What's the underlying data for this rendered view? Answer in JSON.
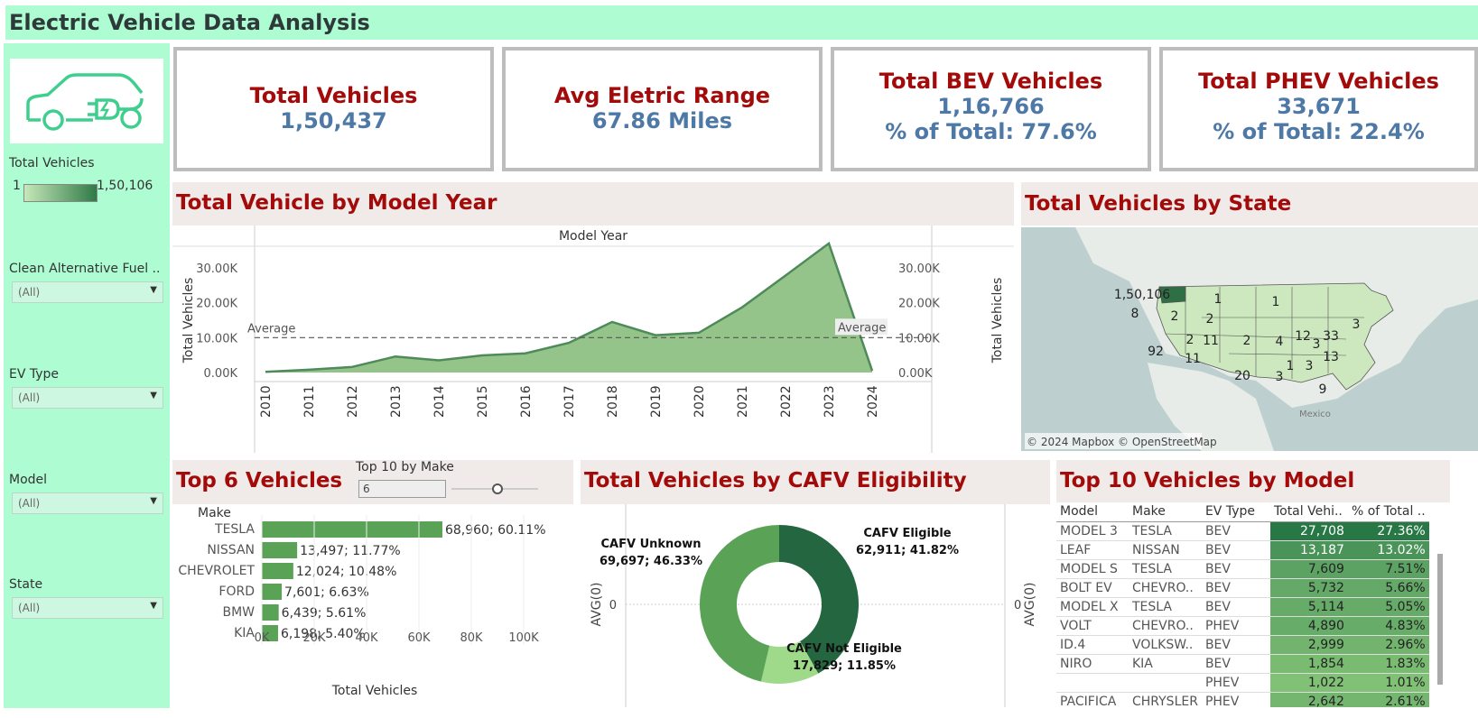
{
  "page_title": "Electric Vehicle Data Analysis",
  "sidebar": {
    "logo_icon": "ev-car-icon",
    "legend_title": "Total Vehicles",
    "legend_min": "1",
    "legend_max": "1,50,106",
    "filters": [
      {
        "label": "Clean Alternative Fuel ..",
        "value": "(All)"
      },
      {
        "label": "EV Type",
        "value": "(All)"
      },
      {
        "label": "Model",
        "value": "(All)"
      },
      {
        "label": "State",
        "value": "(All)"
      }
    ]
  },
  "kpis": [
    {
      "title": "Total Vehicles",
      "value": "1,50,437",
      "sub": ""
    },
    {
      "title": "Avg Eletric Range",
      "value": "67.86 Miles",
      "sub": ""
    },
    {
      "title": "Total BEV Vehicles",
      "value": "1,16,766",
      "sub": "% of Total: 77.6%"
    },
    {
      "title": "Total PHEV Vehicles",
      "value": "33,671",
      "sub": "% of Total: 22.4%"
    }
  ],
  "colors": {
    "title_red": "#a30a0a",
    "kpi_blue": "#4e79a7",
    "area_green": "#95c48a",
    "bar_green": "#5aa356",
    "sidebar": "#adfcd2"
  },
  "chart_data": [
    {
      "type": "area",
      "title": "Total Vehicle by Model Year",
      "xlabel": "Model Year",
      "ylabel": "Total Vehicles",
      "reference_line_label": "Average",
      "reference_line_value": 10000,
      "x": [
        2010,
        2011,
        2012,
        2013,
        2014,
        2015,
        2016,
        2017,
        2018,
        2019,
        2020,
        2021,
        2022,
        2023,
        2024
      ],
      "values": [
        200,
        800,
        1600,
        4600,
        3500,
        4900,
        5500,
        8500,
        14500,
        10700,
        11400,
        18700,
        27800,
        37000,
        500
      ],
      "ylim": [
        0,
        38000
      ],
      "yticks": [
        "0.00K",
        "10.00K",
        "20.00K",
        "30.00K"
      ],
      "yticks_values": [
        0,
        10000,
        20000,
        30000
      ]
    },
    {
      "type": "bar",
      "title": "Top 6 Vehicles",
      "parameter_label": "Top 10 by Make",
      "parameter_value": "6",
      "ylabel": "Make",
      "xlabel": "Total Vehicles",
      "categories": [
        "TESLA",
        "NISSAN",
        "CHEVROLET",
        "FORD",
        "BMW",
        "KIA"
      ],
      "values": [
        68960,
        13497,
        12024,
        7601,
        6439,
        6198
      ],
      "labels": [
        "68,960; 60.11%",
        "13,497; 11.77%",
        "12,024; 10.48%",
        "7,601; 6.63%",
        "6,439; 5.61%",
        "6,198; 5.40%"
      ],
      "xlim": [
        0,
        100000
      ],
      "xticks": [
        "0K",
        "20K",
        "40K",
        "60K",
        "80K",
        "100K"
      ],
      "xticks_values": [
        0,
        20000,
        40000,
        60000,
        80000,
        100000
      ]
    },
    {
      "type": "pie",
      "title": "Total Vehicles by CAFV Eligibility",
      "axis_label": "AVG(0)",
      "axis_tick": "0",
      "slices": [
        {
          "name": "CAFV Eligible",
          "value": 62911,
          "label": "62,911; 41.82%",
          "color": "#24663f"
        },
        {
          "name": "CAFV Not Eligible",
          "value": 17829,
          "label": "17,829; 11.85%",
          "color": "#9fd98a"
        },
        {
          "name": "CAFV Unknown",
          "value": 69697,
          "label": "69,697; 46.33%",
          "color": "#5aa356"
        }
      ]
    },
    {
      "type": "table",
      "title": "Top 10 Vehicles by Model",
      "columns": [
        "Model",
        "Make",
        "EV Type",
        "Total Vehi..",
        "% of Total .."
      ],
      "rows": [
        {
          "model": "MODEL 3",
          "make": "TESLA",
          "type": "BEV",
          "total": "27,708",
          "pct": "27.36%",
          "value": 27708
        },
        {
          "model": "LEAF",
          "make": "NISSAN",
          "type": "BEV",
          "total": "13,187",
          "pct": "13.02%",
          "value": 13187
        },
        {
          "model": "MODEL S",
          "make": "TESLA",
          "type": "BEV",
          "total": "7,609",
          "pct": "7.51%",
          "value": 7609
        },
        {
          "model": "BOLT EV",
          "make": "CHEVRO..",
          "type": "BEV",
          "total": "5,732",
          "pct": "5.66%",
          "value": 5732
        },
        {
          "model": "MODEL X",
          "make": "TESLA",
          "type": "BEV",
          "total": "5,114",
          "pct": "5.05%",
          "value": 5114
        },
        {
          "model": "VOLT",
          "make": "CHEVRO..",
          "type": "PHEV",
          "total": "4,890",
          "pct": "4.83%",
          "value": 4890
        },
        {
          "model": "ID.4",
          "make": "VOLKSW..",
          "type": "BEV",
          "total": "2,999",
          "pct": "2.96%",
          "value": 2999
        },
        {
          "model": "NIRO",
          "make": "KIA",
          "type": "BEV",
          "total": "1,854",
          "pct": "1.83%",
          "value": 1854
        },
        {
          "model": "",
          "make": "",
          "type": "PHEV",
          "total": "1,022",
          "pct": "1.01%",
          "value": 1022
        },
        {
          "model": "PACIFICA",
          "make": "CHRYSLER",
          "type": "PHEV",
          "total": "2,642",
          "pct": "2.61%",
          "value": 2642
        }
      ]
    }
  ],
  "map": {
    "title": "Total Vehicles by State",
    "attribution": "© 2024 Mapbox © OpenStreetMap",
    "country_label": "Mexico",
    "state_labels": [
      "1,50,106",
      "1",
      "1",
      "8",
      "2",
      "2",
      "2",
      "11",
      "2",
      "4",
      "12",
      "3",
      "33",
      "3",
      "92",
      "11",
      "13",
      "1",
      "3",
      "20",
      "3",
      "9"
    ]
  }
}
